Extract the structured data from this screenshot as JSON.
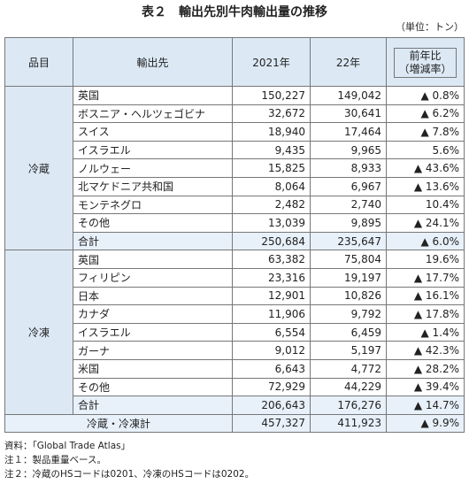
{
  "header": {
    "title": "表２　輸出先別牛肉輸出量の推移",
    "unit": "（単位：トン）"
  },
  "table": {
    "columns": [
      "品目",
      "輸出先",
      "2021年",
      "22年",
      "前年比",
      "（増減率）"
    ],
    "groups": [
      {
        "name": "冷蔵",
        "rows": [
          [
            "英国",
            "150,227",
            "149,042",
            "▲ 0.8%"
          ],
          [
            "ボスニア・ヘルツェゴビナ",
            "32,672",
            "30,641",
            "▲ 6.2%"
          ],
          [
            "スイス",
            "18,940",
            "17,464",
            "▲ 7.8%"
          ],
          [
            "イスラエル",
            "9,435",
            "9,965",
            "5.6%"
          ],
          [
            "ノルウェー",
            "15,825",
            "8,933",
            "▲ 43.6%"
          ],
          [
            "北マケドニア共和国",
            "8,064",
            "6,967",
            "▲ 13.6%"
          ],
          [
            "モンテネグロ",
            "2,482",
            "2,740",
            "10.4%"
          ],
          [
            "その他",
            "13,039",
            "9,895",
            "▲ 24.1%"
          ],
          [
            "合計",
            "250,684",
            "235,647",
            "▲ 6.0%"
          ]
        ]
      },
      {
        "name": "冷凍",
        "rows": [
          [
            "英国",
            "63,382",
            "75,804",
            "19.6%"
          ],
          [
            "フィリピン",
            "23,316",
            "19,197",
            "▲ 17.7%"
          ],
          [
            "日本",
            "12,901",
            "10,826",
            "▲ 16.1%"
          ],
          [
            "カナダ",
            "11,906",
            "9,792",
            "▲ 17.8%"
          ],
          [
            "イスラエル",
            "6,554",
            "6,459",
            "▲ 1.4%"
          ],
          [
            "ガーナ",
            "9,012",
            "5,197",
            "▲ 42.3%"
          ],
          [
            "米国",
            "6,643",
            "4,772",
            "▲ 28.2%"
          ],
          [
            "その他",
            "72,929",
            "44,229",
            "▲ 39.4%"
          ],
          [
            "合計",
            "206,643",
            "176,276",
            "▲ 14.7%"
          ]
        ]
      }
    ],
    "total": [
      "冷蔵・冷凍計",
      "457,327",
      "411,923",
      "▲ 9.9%"
    ]
  },
  "notes": [
    "資料：「Global Trade Atlas」",
    "注１：製品重量ベース。",
    "注２：冷蔵のHSコードは0201、冷凍のHSコードは0202。"
  ]
}
